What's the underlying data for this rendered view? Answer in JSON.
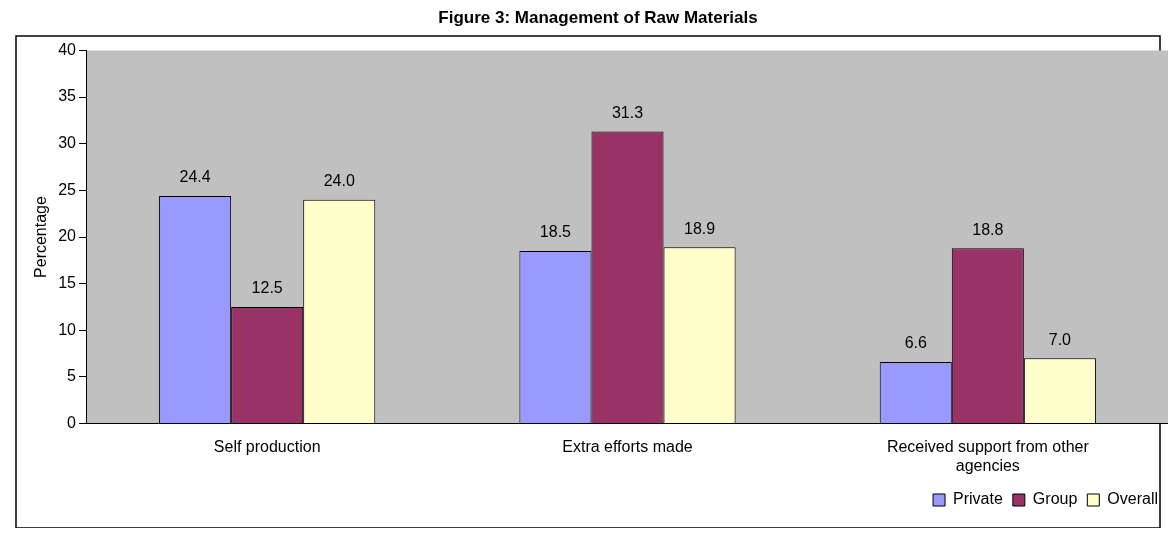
{
  "chart_data": {
    "type": "bar",
    "title": "Figure 3: Management of Raw Materials",
    "ylabel": "Percentage",
    "categories": [
      "Self production",
      "Extra efforts made",
      "Received support from other agencies"
    ],
    "series": [
      {
        "name": "Private",
        "color": "#9999ff",
        "values": [
          24.4,
          18.5,
          6.6
        ]
      },
      {
        "name": "Group",
        "color": "#993366",
        "values": [
          12.5,
          31.3,
          18.8
        ]
      },
      {
        "name": "Overall",
        "color": "#ffffcc",
        "values": [
          24.0,
          18.9,
          7.0
        ]
      }
    ],
    "value_labels": [
      [
        "24.4",
        "18.5",
        "6.6"
      ],
      [
        "12.5",
        "31.3",
        "18.8"
      ],
      [
        "24.0",
        "18.9",
        "7.0"
      ]
    ],
    "ylim": [
      0,
      40
    ],
    "yticks": [
      0,
      5,
      10,
      15,
      20,
      25,
      30,
      35,
      40
    ],
    "grid": false,
    "legend": "bottom right"
  }
}
